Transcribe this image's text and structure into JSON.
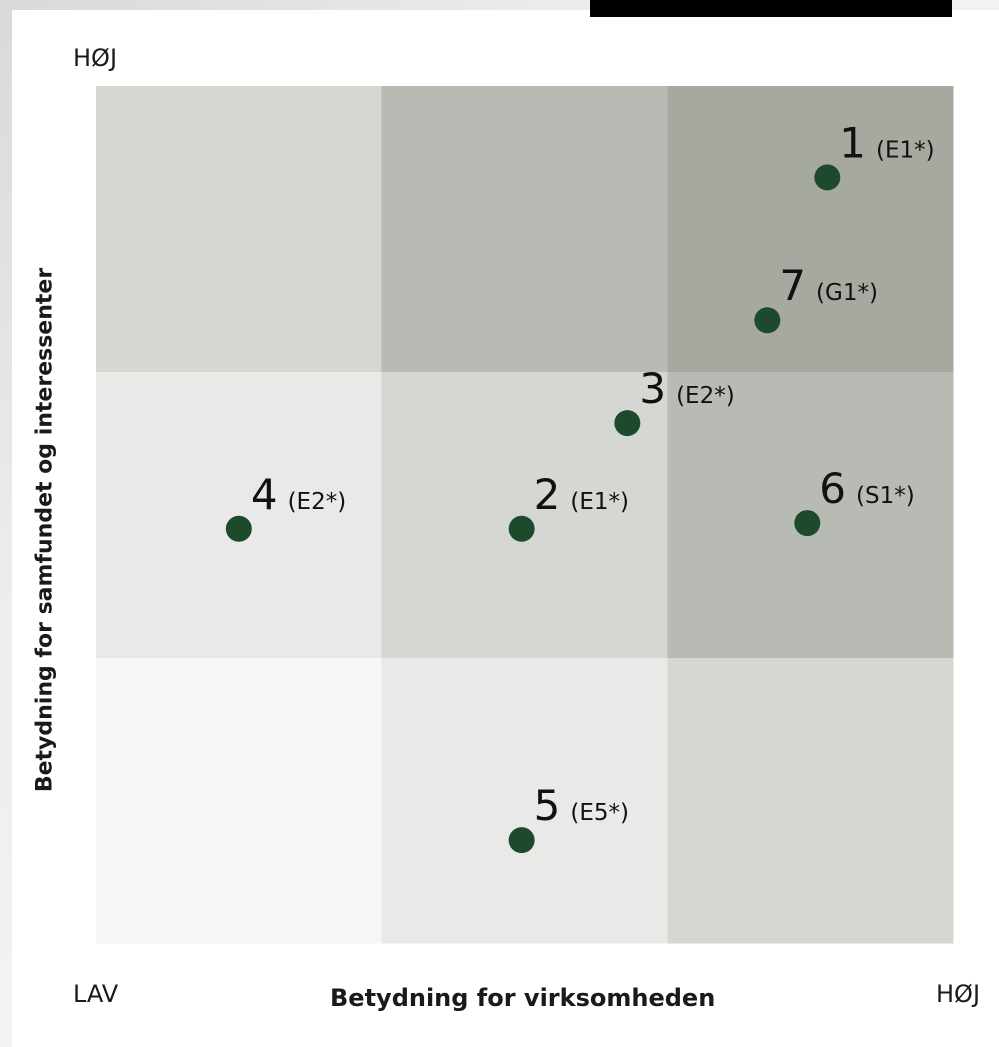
{
  "chart_data": {
    "type": "scatter",
    "title": "",
    "xlabel": "Betydning for virksomheden",
    "ylabel": "Betydning for samfundet og interessenter",
    "x_low_label": "LAV",
    "x_high_label": "HØJ",
    "y_high_label": "HØJ",
    "xlim": [
      0,
      3
    ],
    "ylim": [
      0,
      3
    ],
    "grid": "3x3",
    "cell_colors": [
      [
        "#f7f7f6",
        "#e9e9e8",
        "#d5d7d3"
      ],
      [
        "#e9e9e8",
        "#d5d7d3",
        "#b7bbb3"
      ],
      [
        "#d5d7d3",
        "#b7bbb3",
        "#a5a99f"
      ]
    ],
    "point_color": "#1d4a2c",
    "points": [
      {
        "number": "1",
        "code": "(E1*)",
        "x": 2.56,
        "y": 2.68
      },
      {
        "number": "2",
        "code": "(E1*)",
        "x": 1.49,
        "y": 1.45
      },
      {
        "number": "3",
        "code": "(E2*)",
        "x": 1.86,
        "y": 1.82
      },
      {
        "number": "4",
        "code": "(E2*)",
        "x": 0.5,
        "y": 1.45
      },
      {
        "number": "5",
        "code": "(E5*)",
        "x": 1.49,
        "y": 0.36
      },
      {
        "number": "6",
        "code": "(S1*)",
        "x": 2.49,
        "y": 1.47
      },
      {
        "number": "7",
        "code": "(G1*)",
        "x": 2.35,
        "y": 2.18
      }
    ]
  }
}
